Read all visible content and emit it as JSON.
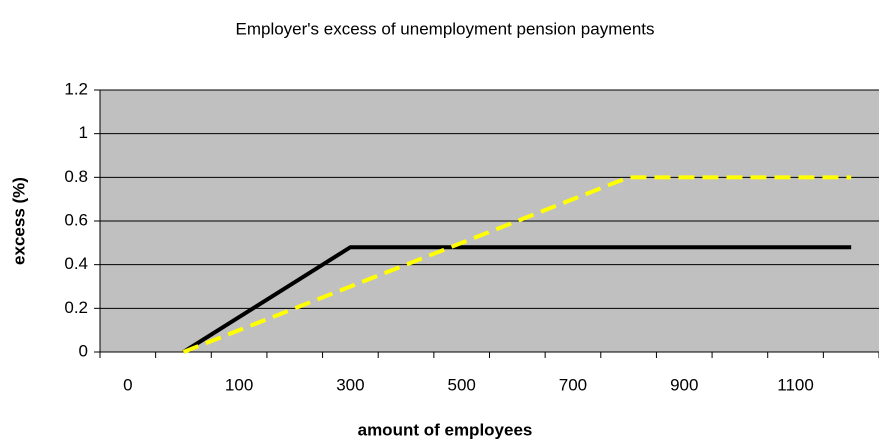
{
  "chart_data": {
    "type": "line",
    "title": "Employer's excess of unemployment pension payments",
    "x_label": "amount of employees",
    "y_label": "excess (%)",
    "categories": [
      0,
      null,
      100,
      null,
      300,
      null,
      500,
      null,
      700,
      null,
      900,
      null,
      1100,
      null
    ],
    "series": [
      {
        "name": "black",
        "color": "#000000",
        "dash": false,
        "values": [
          null,
          0,
          0.16,
          0.32,
          0.48,
          0.48,
          0.48,
          0.48,
          0.48,
          0.48,
          0.48,
          0.48,
          0.48,
          0.48
        ]
      },
      {
        "name": "yellow",
        "color": "#ffff00",
        "dash": true,
        "values": [
          null,
          0,
          0.1,
          0.2,
          0.3,
          0.4,
          0.5,
          0.6,
          0.7,
          0.8,
          0.8,
          0.8,
          0.8,
          0.8
        ]
      }
    ],
    "ylim": [
      0,
      1.2
    ],
    "yticks": [
      0,
      0.2,
      0.4,
      0.6,
      0.8,
      1,
      1.2
    ],
    "grid": true
  }
}
